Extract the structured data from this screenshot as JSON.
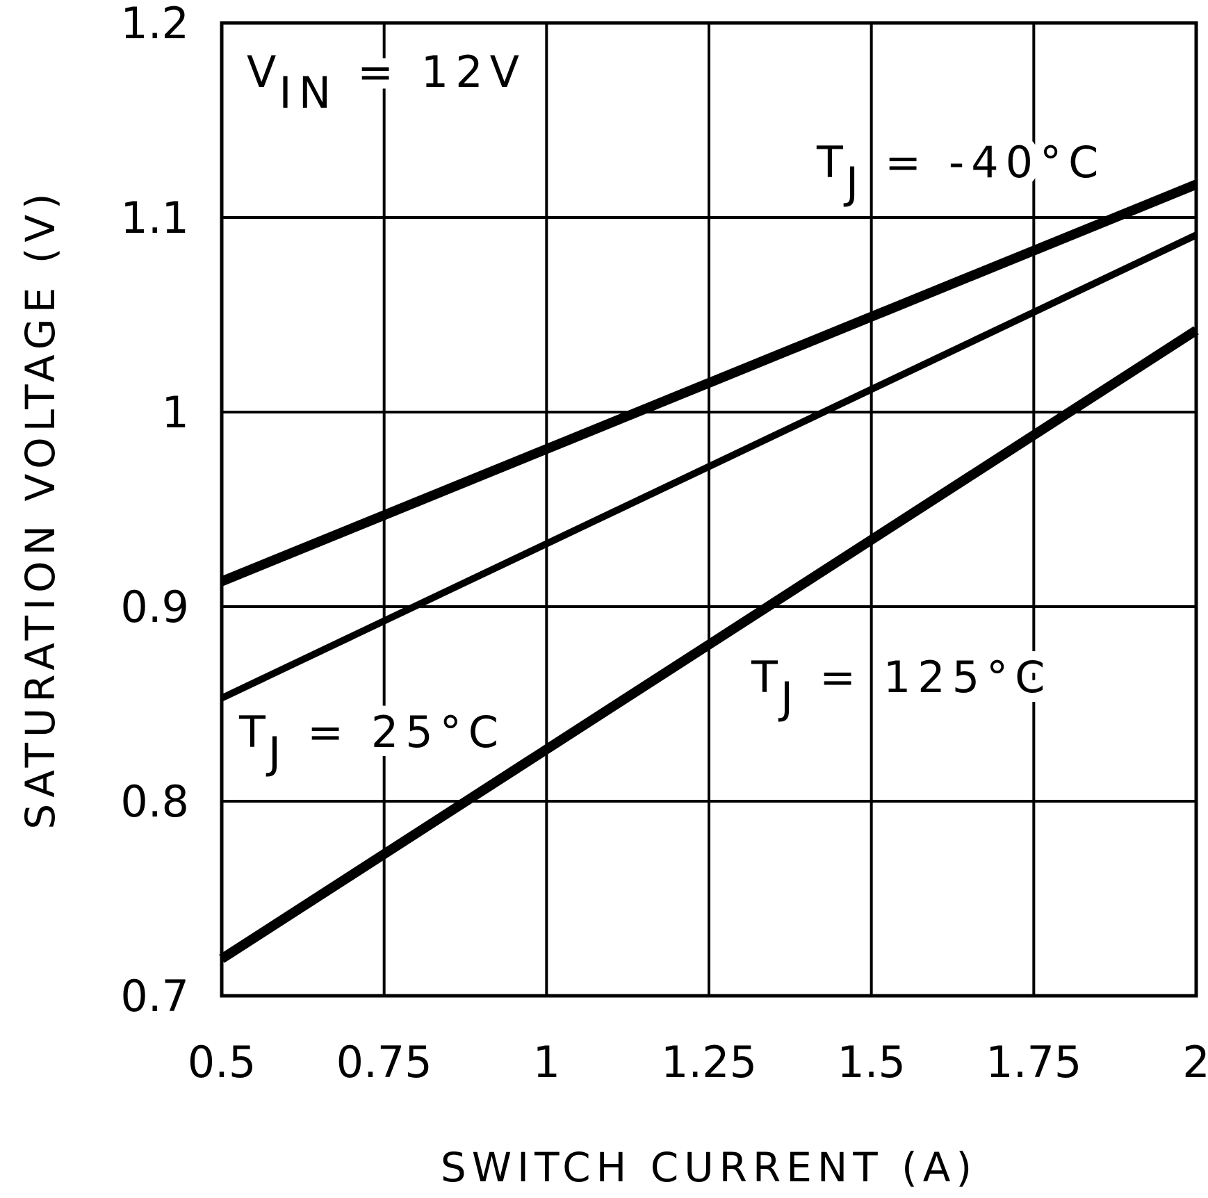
{
  "chart_data": {
    "type": "line",
    "x_label": "SWITCH CURRENT (A)",
    "y_label": "SATURATION VOLTAGE (V)",
    "xlim": [
      0.5,
      2
    ],
    "xticks": [
      0.5,
      0.75,
      1,
      1.25,
      1.5,
      1.75,
      2
    ],
    "ylim": [
      0.7,
      1.2
    ],
    "yticks": [
      0.7,
      0.8,
      0.9,
      1,
      1.1,
      1.2
    ],
    "grid": true,
    "annotations": [
      {
        "main": "V",
        "sub": "IN",
        "rest": "= 12V"
      }
    ],
    "series": [
      {
        "label": {
          "main": "T",
          "sub": "J",
          "rest": "= -40°C"
        },
        "color": "#000000",
        "x": [
          0.5,
          2
        ],
        "values": [
          0.913,
          1.117
        ]
      },
      {
        "label": {
          "main": "T",
          "sub": "J",
          "rest": "= 25°C"
        },
        "color": "#000000",
        "x": [
          0.5,
          2
        ],
        "values": [
          0.853,
          1.091
        ]
      },
      {
        "label": {
          "main": "T",
          "sub": "J",
          "rest": "= 125°C"
        },
        "color": "#000000",
        "x": [
          0.5,
          2
        ],
        "values": [
          0.719,
          1.042
        ]
      }
    ]
  }
}
